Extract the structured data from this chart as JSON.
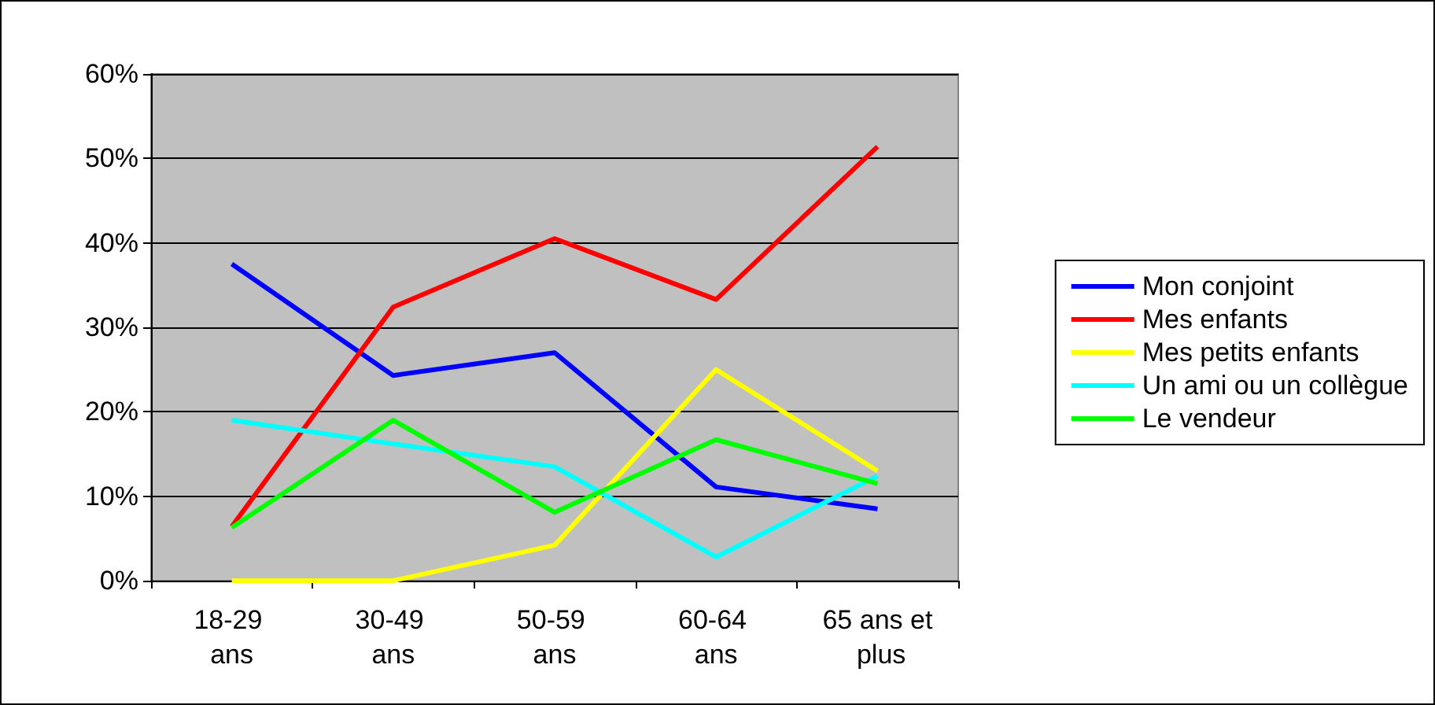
{
  "chart_data": {
    "type": "line",
    "categories": [
      "18-29 ans",
      "30-49 ans",
      "50-59 ans",
      "60-64 ans",
      "65 ans et plus"
    ],
    "series": [
      {
        "name": "Mon conjoint",
        "color": "#0000ff",
        "values": [
          37.5,
          24.3,
          27,
          11.1,
          8.5
        ]
      },
      {
        "name": "Mes enfants",
        "color": "#ff0000",
        "values": [
          6.4,
          32.4,
          40.5,
          33.3,
          51.4
        ]
      },
      {
        "name": "Mes petits enfants",
        "color": "#ffff00",
        "values": [
          0,
          0,
          4.2,
          25,
          13
        ]
      },
      {
        "name": "Un ami ou un collègue",
        "color": "#00ffff",
        "values": [
          19,
          16.2,
          13.5,
          2.8,
          12.4
        ]
      },
      {
        "name": "Le vendeur",
        "color": "#00ff00",
        "values": [
          6.3,
          19,
          8.1,
          16.7,
          11.5
        ]
      }
    ],
    "ylim": [
      0,
      60
    ],
    "yticks": [
      {
        "value": 0,
        "label": "0%"
      },
      {
        "value": 10,
        "label": "10%"
      },
      {
        "value": 20,
        "label": "20%"
      },
      {
        "value": 30,
        "label": "30%"
      },
      {
        "value": 40,
        "label": "40%"
      },
      {
        "value": 50,
        "label": "50%"
      },
      {
        "value": 60,
        "label": "60%"
      }
    ],
    "grid": "y",
    "legend": "right",
    "marker": "none",
    "line_style": "solid"
  }
}
